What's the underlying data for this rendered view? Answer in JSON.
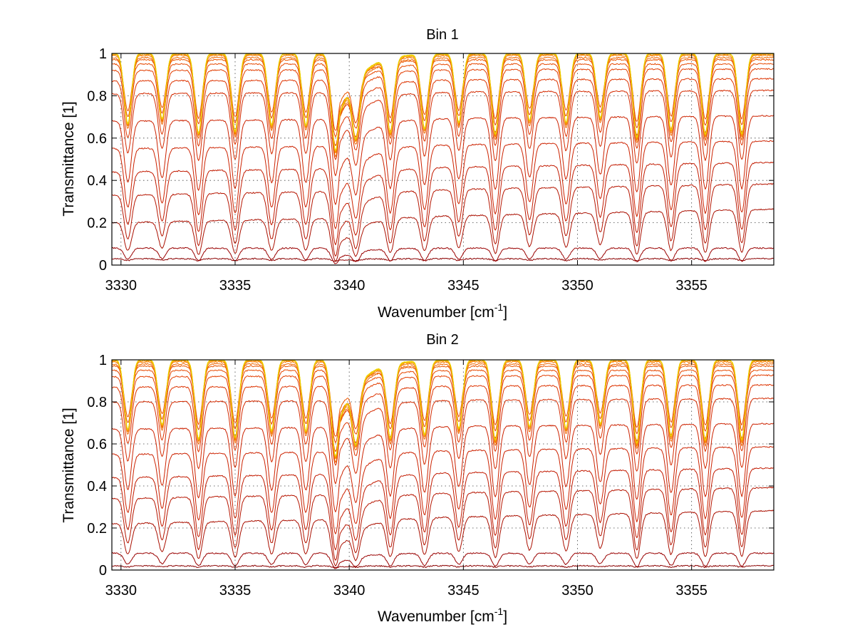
{
  "chart_data": [
    {
      "type": "line",
      "title": "Bin 1",
      "xlabel": "Wavenumber [cm",
      "xlabel_superscript": "-1",
      "xlabel_suffix": "]",
      "ylabel": "Transmittance [1]",
      "xlim": [
        3329.6,
        3358.6
      ],
      "ylim": [
        0,
        1
      ],
      "xticks": [
        3330,
        3335,
        3340,
        3345,
        3350,
        3355
      ],
      "xtick_labels": [
        "3330",
        "3335",
        "3340",
        "3345",
        "3350",
        "3355"
      ],
      "yticks": [
        0,
        0.2,
        0.4,
        0.6,
        0.8,
        1
      ],
      "ytick_labels": [
        "0",
        "0.2",
        "0.4",
        "0.6",
        "0.8",
        "1"
      ],
      "grid": true,
      "absorption_lines_cm1": [
        3330.3,
        3331.8,
        3333.4,
        3335.0,
        3336.6,
        3338.1,
        3339.4,
        3340.3,
        3341.8,
        3343.3,
        3344.8,
        3346.4,
        3347.9,
        3349.5,
        3351.0,
        3352.6,
        3354.1,
        3355.6,
        3357.2
      ],
      "series_continuum_transmittance": [
        0.03,
        0.08,
        0.2,
        0.33,
        0.44,
        0.55,
        0.68,
        0.81,
        0.87,
        0.92,
        0.95,
        0.97,
        0.98,
        0.99,
        0.995,
        0.998,
        1.0,
        1.0,
        1.0
      ],
      "series_colors": [
        "#8b0000",
        "#990000",
        "#aa0f00",
        "#b61500",
        "#c21a00",
        "#cc2200",
        "#cc2200",
        "#d42a00",
        "#dd3300",
        "#e23d00",
        "#e64800",
        "#eb5600",
        "#ef6600",
        "#f37a00",
        "#f68c00",
        "#f8a000",
        "#f9b400",
        "#f7c800",
        "#e9d600"
      ]
    },
    {
      "type": "line",
      "title": "Bin 2",
      "xlabel": "Wavenumber [cm",
      "xlabel_superscript": "-1",
      "xlabel_suffix": "]",
      "ylabel": "Transmittance [1]",
      "xlim": [
        3329.6,
        3358.6
      ],
      "ylim": [
        0,
        1
      ],
      "xticks": [
        3330,
        3335,
        3340,
        3345,
        3350,
        3355
      ],
      "xtick_labels": [
        "3330",
        "3335",
        "3340",
        "3345",
        "3350",
        "3355"
      ],
      "yticks": [
        0,
        0.2,
        0.4,
        0.6,
        0.8,
        1
      ],
      "ytick_labels": [
        "0",
        "0.2",
        "0.4",
        "0.6",
        "0.8",
        "1"
      ],
      "grid": true,
      "absorption_lines_cm1": [
        3330.3,
        3331.8,
        3333.4,
        3335.0,
        3336.6,
        3338.1,
        3339.4,
        3340.3,
        3341.8,
        3343.3,
        3344.8,
        3346.4,
        3347.9,
        3349.5,
        3351.0,
        3352.6,
        3354.1,
        3355.6,
        3357.2
      ],
      "series_continuum_transmittance": [
        0.02,
        0.08,
        0.22,
        0.34,
        0.44,
        0.55,
        0.67,
        0.8,
        0.87,
        0.92,
        0.95,
        0.97,
        0.98,
        0.99,
        0.995,
        0.998,
        1.0,
        1.0,
        1.0
      ],
      "series_colors": [
        "#8b0000",
        "#990000",
        "#aa0f00",
        "#b61500",
        "#c21a00",
        "#cc2200",
        "#cc2200",
        "#d42a00",
        "#dd3300",
        "#e23d00",
        "#e64800",
        "#eb5600",
        "#ef6600",
        "#f37a00",
        "#f68c00",
        "#f8a000",
        "#f9b400",
        "#f7c800",
        "#e9d600"
      ]
    }
  ]
}
